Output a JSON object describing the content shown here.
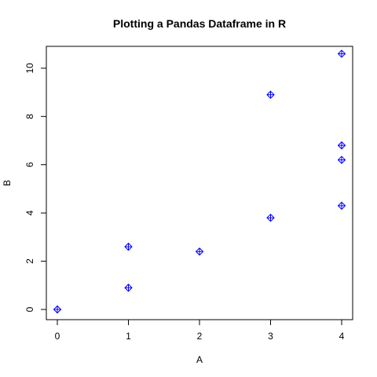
{
  "chart_data": {
    "type": "scatter",
    "title": "Plotting a Pandas Dataframe in R",
    "xlabel": "A",
    "ylabel": "B",
    "xlim": [
      0,
      4
    ],
    "ylim": [
      0,
      10.5
    ],
    "xticks": [
      0,
      1,
      2,
      3,
      4
    ],
    "yticks": [
      0,
      2,
      4,
      6,
      8,
      10
    ],
    "grid": false,
    "marker": "diamond-plus",
    "color": "#0000ff",
    "points": [
      {
        "x": 0,
        "y": 0.0
      },
      {
        "x": 1,
        "y": 0.9
      },
      {
        "x": 1,
        "y": 2.6
      },
      {
        "x": 2,
        "y": 2.4
      },
      {
        "x": 3,
        "y": 3.8
      },
      {
        "x": 3,
        "y": 8.9
      },
      {
        "x": 4,
        "y": 4.3
      },
      {
        "x": 4,
        "y": 6.2
      },
      {
        "x": 4,
        "y": 6.8
      },
      {
        "x": 4,
        "y": 10.6
      }
    ]
  }
}
